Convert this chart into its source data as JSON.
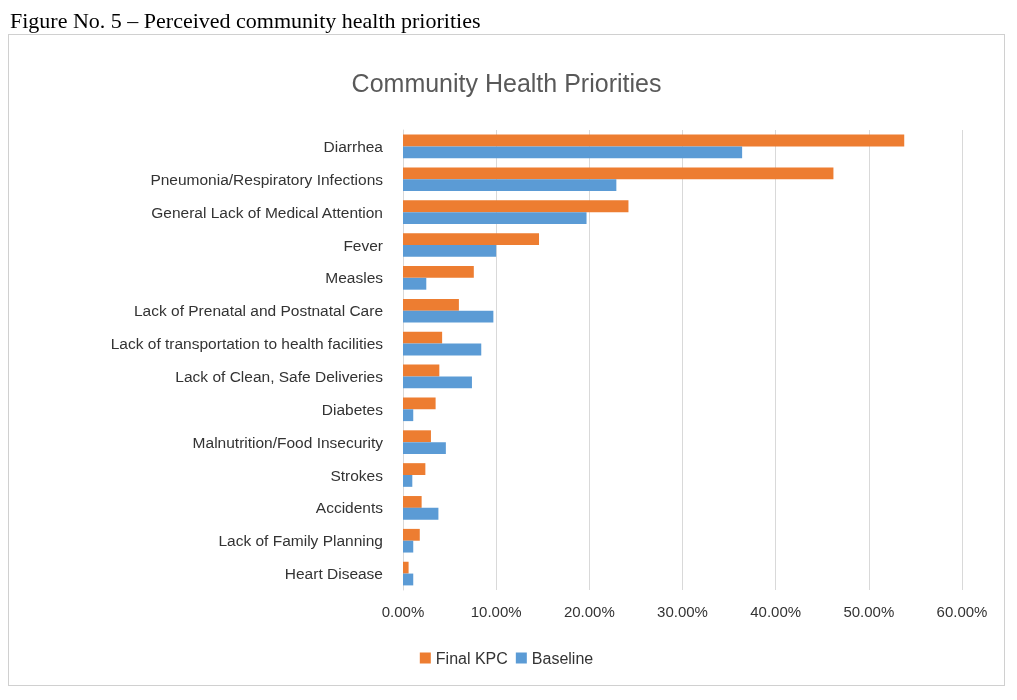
{
  "chart_data": {
    "type": "bar",
    "orientation": "horizontal",
    "title": "Community Health Priorities",
    "annotations": [
      "Figure No. 5 – Perceived community health priorities"
    ],
    "categories": [
      "Diarrhea",
      "Pneumonia/Respiratory Infections",
      "General Lack of Medical Attention",
      "Fever",
      "Measles",
      "Lack of Prenatal and Postnatal Care",
      "Lack of transportation to health facilities",
      "Lack of Clean, Safe Deliveries",
      "Diabetes",
      "Malnutrition/Food Insecurity",
      "Strokes",
      "Accidents",
      "Lack of Family Planning",
      "Heart Disease"
    ],
    "series": [
      {
        "name": "Final KPC",
        "color": "#ed7d31",
        "values": [
          53.8,
          46.2,
          24.2,
          14.6,
          7.6,
          6.0,
          4.2,
          3.9,
          3.5,
          3.0,
          2.4,
          2.0,
          1.8,
          0.6
        ]
      },
      {
        "name": "Baseline",
        "color": "#5b9bd5",
        "values": [
          36.4,
          22.9,
          19.7,
          10.0,
          2.5,
          9.7,
          8.4,
          7.4,
          1.1,
          4.6,
          1.0,
          3.8,
          1.1,
          1.1
        ]
      }
    ],
    "xlim": [
      0,
      60
    ],
    "xticks": [
      {
        "value": 0,
        "label": "0.00%"
      },
      {
        "value": 10,
        "label": "10.00%"
      },
      {
        "value": 20,
        "label": "20.00%"
      },
      {
        "value": 30,
        "label": "30.00%"
      },
      {
        "value": 40,
        "label": "40.00%"
      },
      {
        "value": 50,
        "label": "50.00%"
      },
      {
        "value": 60,
        "label": "60.00%"
      }
    ],
    "grid": "x",
    "legend": "bottom"
  }
}
